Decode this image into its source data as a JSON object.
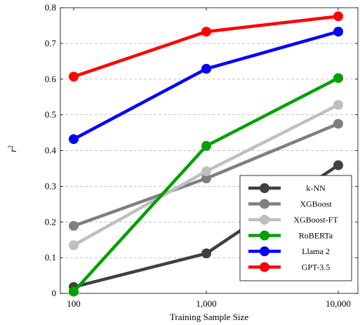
{
  "chart_data": {
    "type": "line",
    "x": [
      "100",
      "1,000",
      "10,000"
    ],
    "xlabel": "Training Sample Size",
    "ylabel": "r",
    "ylabel_superscript": "2",
    "ylim": [
      0,
      0.8
    ],
    "yticks": [
      "0",
      "0.1",
      "0.2",
      "0.3",
      "0.4",
      "0.5",
      "0.6",
      "0.7",
      "0.8"
    ],
    "grid": "horizontal-dashed",
    "legend_position": "bottom-right",
    "series": [
      {
        "name": "k-NN",
        "color": "#404040",
        "values": [
          0.018,
          0.112,
          0.359
        ]
      },
      {
        "name": "XGBoost",
        "color": "#7f7f7f",
        "values": [
          0.189,
          0.322,
          0.475
        ]
      },
      {
        "name": "XGBoost-FT",
        "color": "#bfbfbf",
        "values": [
          0.135,
          0.342,
          0.528
        ]
      },
      {
        "name": "RoBERTa",
        "color": "#00a000",
        "values": [
          0.005,
          0.413,
          0.603
        ]
      },
      {
        "name": "Llama 2",
        "color": "#0000ff",
        "values": [
          0.432,
          0.629,
          0.733
        ]
      },
      {
        "name": "GPT-3.5",
        "color": "#ff0000",
        "values": [
          0.607,
          0.733,
          0.776
        ]
      }
    ]
  }
}
